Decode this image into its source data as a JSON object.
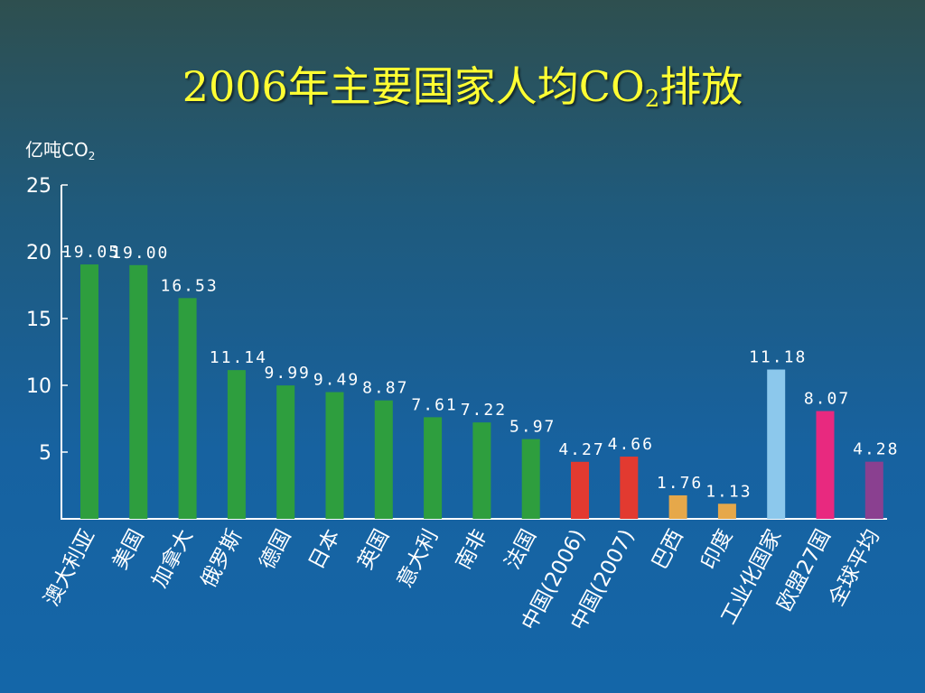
{
  "title": {
    "prefix": "2006年主要国家人均CO",
    "sub": "2",
    "suffix": "排放"
  },
  "unit": {
    "main": "亿吨CO",
    "sub": "2"
  },
  "chart_data": {
    "type": "bar",
    "ylim": [
      0,
      25
    ],
    "yticks": [
      5,
      10,
      15,
      20,
      25
    ],
    "grid": false,
    "categories": [
      "澳大利亚",
      "美国",
      "加拿大",
      "俄罗斯",
      "德国",
      "日本",
      "英国",
      "意大利",
      "南非",
      "法国",
      "中国(2006)",
      "中国(2007)",
      "巴西",
      "印度",
      "工业化国家",
      "欧盟27国",
      "全球平均"
    ],
    "values": [
      19.05,
      19.0,
      16.53,
      11.14,
      9.99,
      9.49,
      8.87,
      7.61,
      7.22,
      5.97,
      4.27,
      4.66,
      1.76,
      1.13,
      11.18,
      8.07,
      4.28
    ],
    "value_labels": [
      "19.05",
      "19.00",
      "16.53",
      "11.14",
      "9.99",
      "9.49",
      "8.87",
      "7.61",
      "7.22",
      "5.97",
      "4.27",
      "4.66",
      "1.76",
      "1.13",
      "11.18",
      "8.07",
      "4.28"
    ],
    "colors": [
      "#2e9e3e",
      "#2e9e3e",
      "#2e9e3e",
      "#2e9e3e",
      "#2e9e3e",
      "#2e9e3e",
      "#2e9e3e",
      "#2e9e3e",
      "#2e9e3e",
      "#2e9e3e",
      "#e23a30",
      "#e23a30",
      "#e6a84a",
      "#e6a84a",
      "#8cc8ec",
      "#e8297f",
      "#8a4090"
    ]
  },
  "colors": {
    "title": "#ffff33",
    "text": "#ffffff",
    "axis": "#ffffff"
  }
}
